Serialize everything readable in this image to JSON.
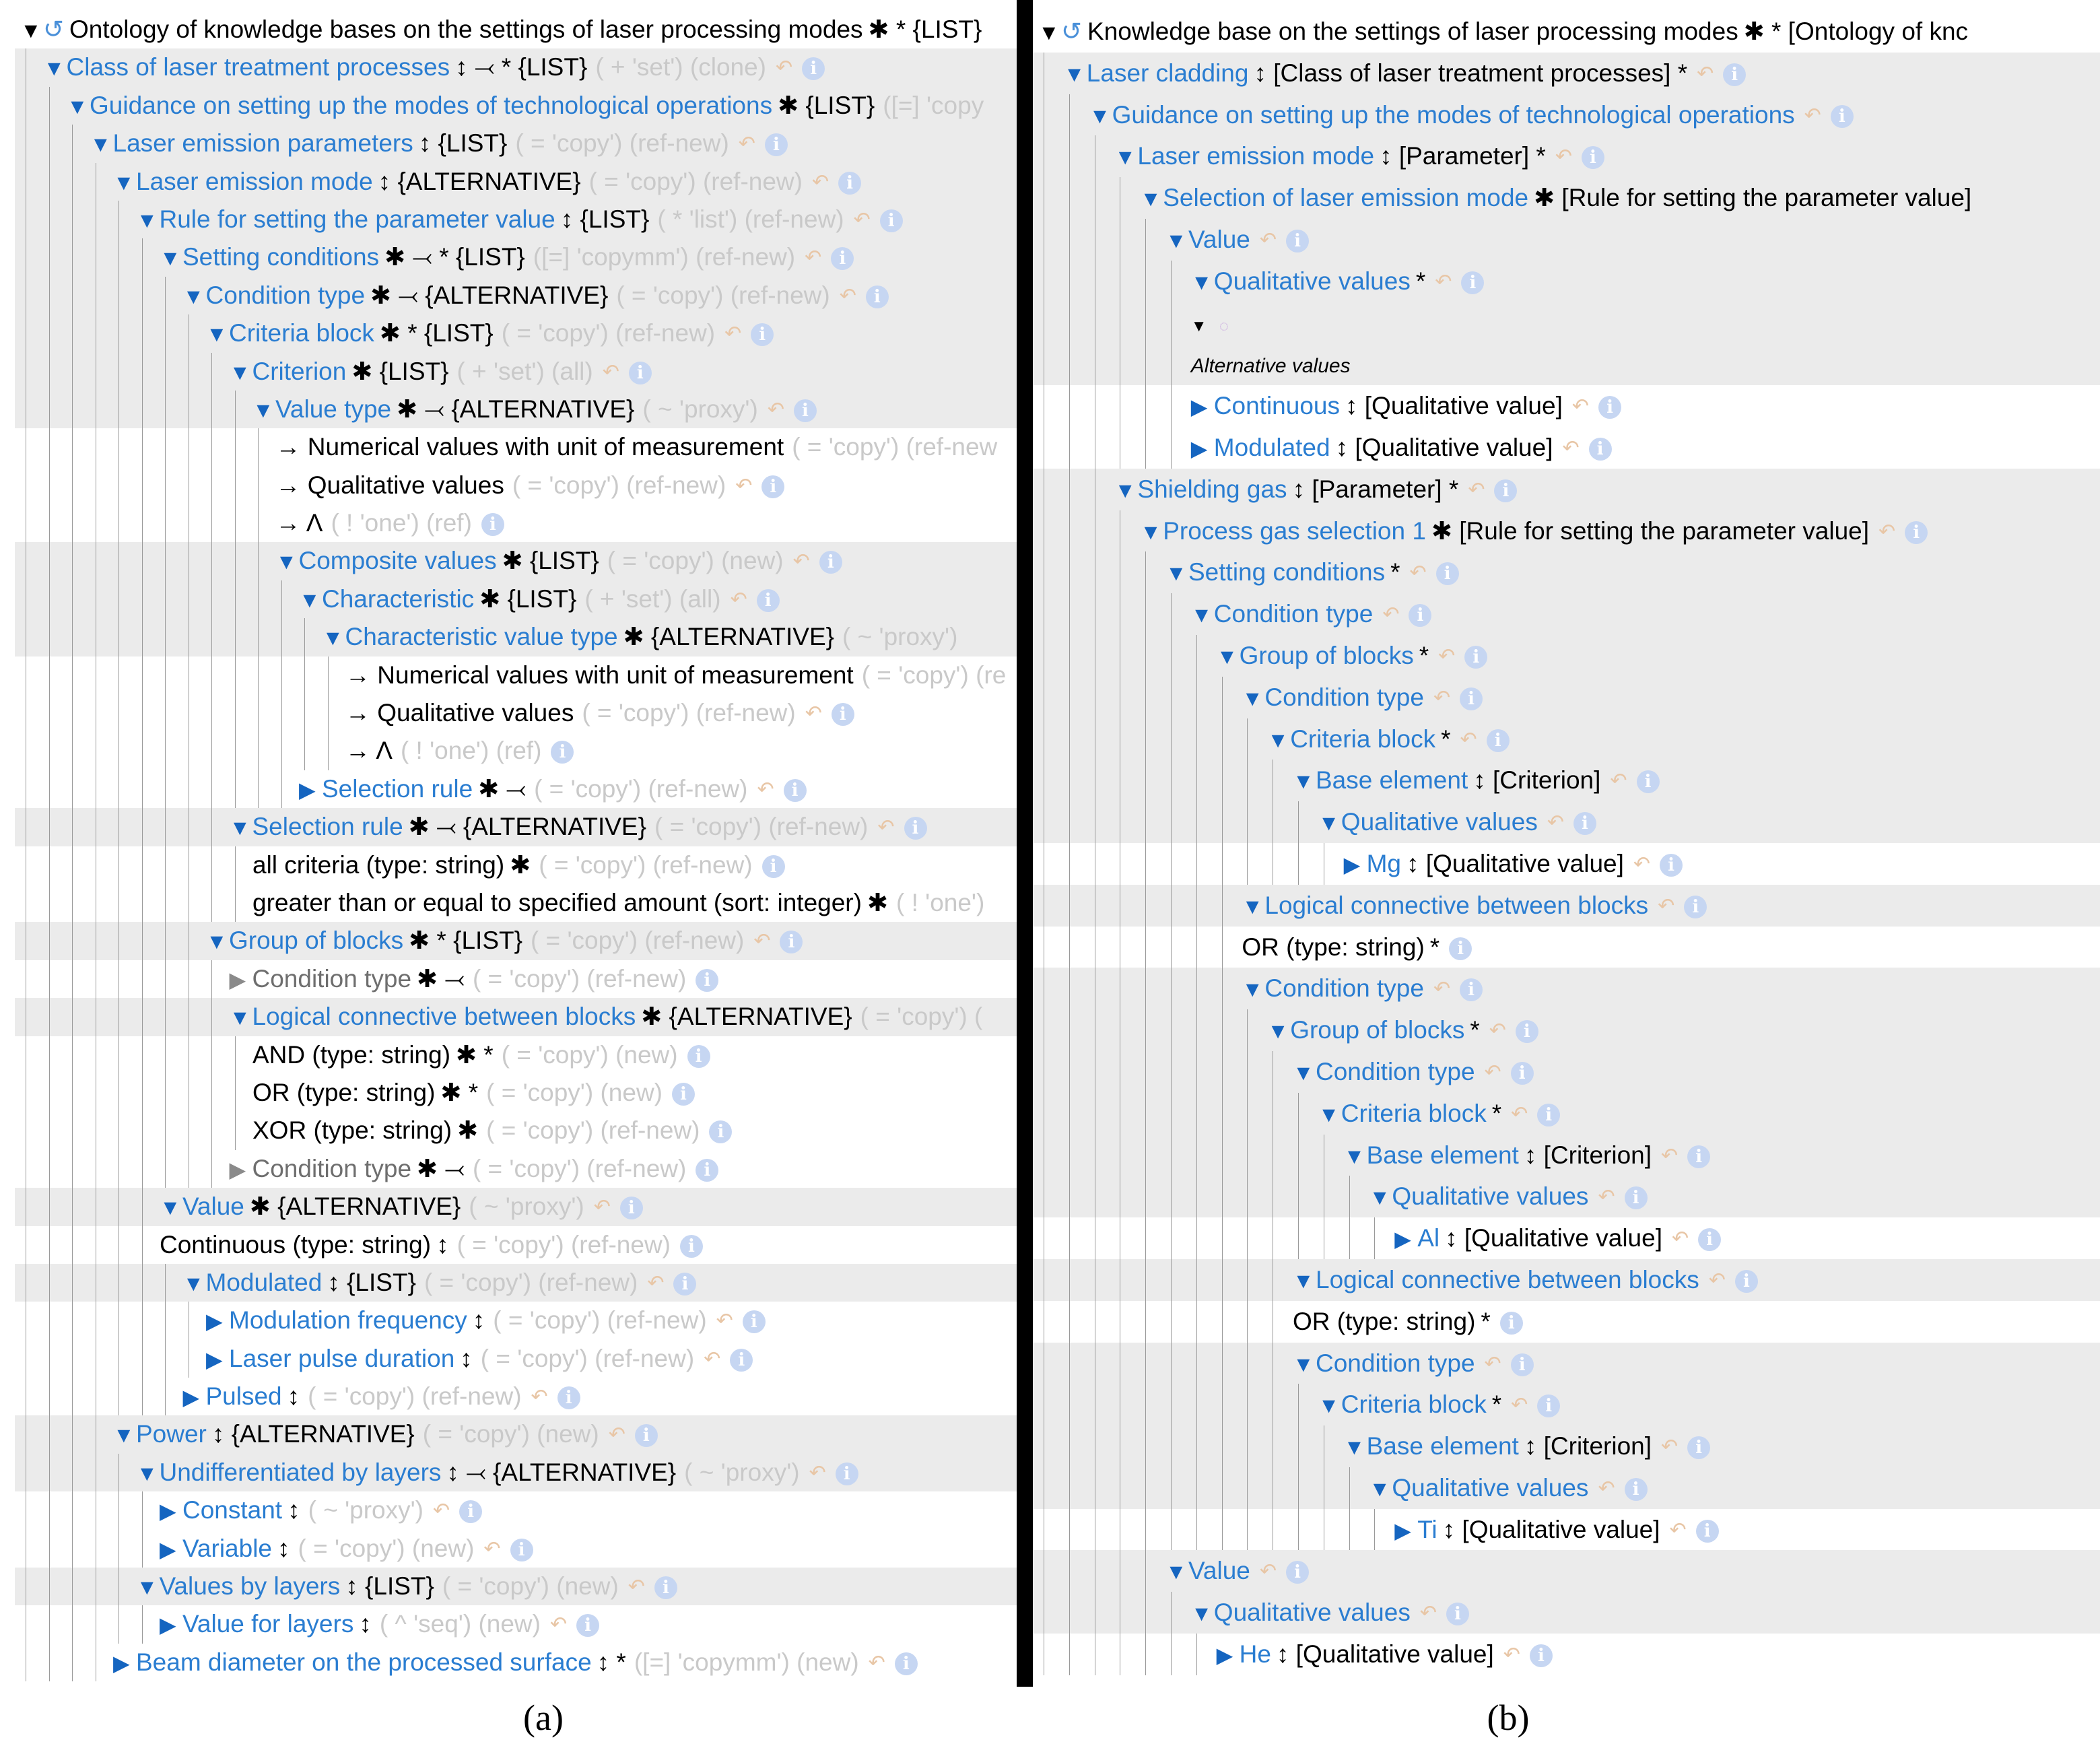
{
  "pane_a": {
    "rows": [
      {
        "d": 0,
        "open": true,
        "root": true,
        "label": "Ontology of knowledge bases on the settings of laser processing modes",
        "dark": true,
        "sfx": "✱ * {LIST}",
        "meta": "",
        "shade": false,
        "icons": false
      },
      {
        "d": 1,
        "open": true,
        "label": "Class of laser treatment processes",
        "sfx": "↕ ⤙ * {LIST}",
        "meta": "( + 'set') (clone)",
        "shade": true
      },
      {
        "d": 2,
        "open": true,
        "label": "Guidance on setting up the modes of technological operations",
        "sfx": "✱ {LIST}",
        "meta": "([=] 'copy",
        "shade": true,
        "icons": false
      },
      {
        "d": 3,
        "open": true,
        "label": "Laser emission parameters",
        "sfx": "↕ {LIST}",
        "meta": "( = 'copy') (ref-new)",
        "shade": true
      },
      {
        "d": 4,
        "open": true,
        "label": "Laser emission mode",
        "sfx": "↕ {ALTERNATIVE}",
        "meta": "( = 'copy') (ref-new)",
        "shade": true
      },
      {
        "d": 5,
        "open": true,
        "label": "Rule for setting the parameter value",
        "sfx": "↕ {LIST}",
        "meta": "( * 'list') (ref-new)",
        "shade": true
      },
      {
        "d": 6,
        "open": true,
        "label": "Setting conditions",
        "sfx": "✱ ⤙ * {LIST}",
        "meta": "([=] 'copymm') (ref-new)",
        "shade": true
      },
      {
        "d": 7,
        "open": true,
        "label": "Condition type",
        "sfx": "✱ ⤙ {ALTERNATIVE}",
        "meta": "( = 'copy') (ref-new)",
        "shade": true
      },
      {
        "d": 8,
        "open": true,
        "label": "Criteria block",
        "sfx": "✱ * {LIST}",
        "meta": "( = 'copy') (ref-new)",
        "shade": true
      },
      {
        "d": 9,
        "open": true,
        "label": "Criterion",
        "sfx": "✱ {LIST}",
        "meta": "( + 'set') (all)",
        "shade": true
      },
      {
        "d": 10,
        "open": true,
        "label": "Value type",
        "sfx": "✱ ⤙ {ALTERNATIVE}",
        "meta": "( ~ 'proxy')",
        "shade": true
      },
      {
        "d": 11,
        "leaf": true,
        "label": "→ Numerical values with unit of measurement",
        "dark": true,
        "sfx": "",
        "meta": "( = 'copy') (ref-new",
        "shade": false,
        "icons": false
      },
      {
        "d": 11,
        "leaf": true,
        "label": "→ Qualitative values",
        "dark": true,
        "sfx": "",
        "meta": "( = 'copy') (ref-new)",
        "shade": false
      },
      {
        "d": 11,
        "leaf": true,
        "label": "→ Λ",
        "dark": true,
        "sfx": "",
        "meta": "( ! 'one') (ref)",
        "shade": false,
        "infoonly": true
      },
      {
        "d": 11,
        "open": true,
        "label": "Composite values",
        "sfx": "✱ {LIST}",
        "meta": "( = 'copy') (new)",
        "shade": true
      },
      {
        "d": 12,
        "open": true,
        "label": "Characteristic",
        "sfx": "✱ {LIST}",
        "meta": "( + 'set') (all)",
        "shade": true
      },
      {
        "d": 13,
        "open": true,
        "label": "Characteristic value type",
        "sfx": "✱ {ALTERNATIVE}",
        "meta": "( ~ 'proxy')",
        "shade": true,
        "icons": false
      },
      {
        "d": 14,
        "leaf": true,
        "label": "→ Numerical values with unit of measurement",
        "dark": true,
        "sfx": "",
        "meta": "( = 'copy') (re",
        "shade": false,
        "icons": false
      },
      {
        "d": 14,
        "leaf": true,
        "label": "→ Qualitative values",
        "dark": true,
        "sfx": "",
        "meta": "( = 'copy') (ref-new)",
        "shade": false
      },
      {
        "d": 14,
        "leaf": true,
        "label": "→ Λ",
        "dark": true,
        "sfx": "",
        "meta": "( ! 'one') (ref)",
        "shade": false,
        "infoonly": true
      },
      {
        "d": 12,
        "open": false,
        "label": "Selection rule",
        "sfx": "✱ ⤙",
        "meta": "( = 'copy') (ref-new)",
        "shade": false
      },
      {
        "d": 9,
        "open": true,
        "label": "Selection rule",
        "sfx": "✱ ⤙ {ALTERNATIVE}",
        "meta": "( = 'copy') (ref-new)",
        "shade": true
      },
      {
        "d": 10,
        "leaf": true,
        "label": "all criteria (type: string)",
        "dark": true,
        "sfx": "✱",
        "meta": "( = 'copy') (ref-new)",
        "shade": false,
        "infoonly": true
      },
      {
        "d": 10,
        "leaf": true,
        "label": "greater than or equal to specified amount (sort: integer)",
        "dark": true,
        "sfx": "✱",
        "meta": "( ! 'one')",
        "shade": false,
        "icons": false
      },
      {
        "d": 8,
        "open": true,
        "label": "Group of blocks",
        "sfx": "✱ * {LIST}",
        "meta": "( = 'copy') (ref-new)",
        "shade": true
      },
      {
        "d": 9,
        "open": false,
        "gray": true,
        "label": "Condition type",
        "sfx": "✱ ⤙",
        "meta": "( = 'copy') (ref-new)",
        "shade": false,
        "infoonly": true
      },
      {
        "d": 9,
        "open": true,
        "label": "Logical connective between blocks",
        "sfx": "✱ {ALTERNATIVE}",
        "meta": "( = 'copy') (",
        "shade": true,
        "icons": false
      },
      {
        "d": 10,
        "leaf": true,
        "label": "AND (type: string)",
        "dark": true,
        "sfx": "✱ *",
        "meta": "( = 'copy') (new)",
        "shade": false,
        "infoonly": true
      },
      {
        "d": 10,
        "leaf": true,
        "label": "OR (type: string)",
        "dark": true,
        "sfx": "✱ *",
        "meta": "( = 'copy') (new)",
        "shade": false,
        "infoonly": true
      },
      {
        "d": 10,
        "leaf": true,
        "label": "XOR (type: string)",
        "dark": true,
        "sfx": "✱",
        "meta": "( = 'copy') (ref-new)",
        "shade": false,
        "infoonly": true
      },
      {
        "d": 9,
        "open": false,
        "gray": true,
        "label": "Condition type",
        "sfx": "✱ ⤙",
        "meta": "( = 'copy') (ref-new)",
        "shade": false,
        "infoonly": true
      },
      {
        "d": 6,
        "open": true,
        "label": "Value",
        "sfx": "✱ {ALTERNATIVE}",
        "meta": "( ~ 'proxy')",
        "shade": true
      },
      {
        "d": 6,
        "leaf": true,
        "label": "Continuous (type: string)",
        "dark": true,
        "sfx": "↕",
        "meta": "( = 'copy') (ref-new)",
        "shade": false,
        "infoonly": true
      },
      {
        "d": 7,
        "open": true,
        "label": "Modulated",
        "sfx": "↕ {LIST}",
        "meta": "( = 'copy') (ref-new)",
        "shade": true
      },
      {
        "d": 8,
        "open": false,
        "label": "Modulation frequency",
        "sfx": "↕",
        "meta": "( = 'copy') (ref-new)",
        "shade": false
      },
      {
        "d": 8,
        "open": false,
        "label": "Laser pulse duration",
        "sfx": "↕",
        "meta": "( = 'copy') (ref-new)",
        "shade": false
      },
      {
        "d": 7,
        "open": false,
        "label": "Pulsed",
        "sfx": "↕",
        "meta": "( = 'copy') (ref-new)",
        "shade": false
      },
      {
        "d": 4,
        "open": true,
        "label": "Power",
        "sfx": "↕ {ALTERNATIVE}",
        "meta": "( = 'copy') (new)",
        "shade": true
      },
      {
        "d": 5,
        "open": true,
        "label": "Undifferentiated by layers",
        "sfx": "↕ ⤙ {ALTERNATIVE}",
        "meta": "( ~ 'proxy')",
        "shade": true
      },
      {
        "d": 6,
        "open": false,
        "label": "Constant",
        "sfx": "↕",
        "meta": "( ~ 'proxy')",
        "shade": false
      },
      {
        "d": 6,
        "open": false,
        "label": "Variable",
        "sfx": "↕",
        "meta": "( = 'copy') (new)",
        "shade": false
      },
      {
        "d": 5,
        "open": true,
        "label": "Values by layers",
        "sfx": "↕ {LIST}",
        "meta": "( = 'copy') (new)",
        "shade": true
      },
      {
        "d": 6,
        "open": false,
        "label": "Value for layers",
        "sfx": "↕",
        "meta": "( ^ 'seq') (new)",
        "shade": false
      },
      {
        "d": 4,
        "open": false,
        "label": "Beam diameter on the processed surface",
        "sfx": "↕ *",
        "meta": "([=] 'copymm') (new)",
        "shade": false
      }
    ]
  },
  "pane_b": {
    "rows": [
      {
        "d": 0,
        "open": true,
        "root": true,
        "label": "Knowledge base on the settings of laser processing modes",
        "dark": true,
        "sfx": "✱ * [Ontology of knc",
        "meta": "",
        "shade": false,
        "icons": false
      },
      {
        "d": 1,
        "open": true,
        "label": "Laser cladding",
        "sfx": "↕ [Class of laser treatment processes] *",
        "meta": "",
        "shade": true
      },
      {
        "d": 2,
        "open": true,
        "label": "Guidance on setting up the modes of technological operations",
        "sfx": "",
        "meta": "",
        "shade": true
      },
      {
        "d": 3,
        "open": true,
        "label": "Laser emission mode",
        "sfx": "↕ [Parameter] *",
        "meta": "",
        "shade": true
      },
      {
        "d": 4,
        "open": true,
        "label": "Selection of laser emission mode",
        "sfx": "✱ [Rule for setting the parameter value]",
        "meta": "",
        "shade": true,
        "icons": false
      },
      {
        "d": 5,
        "open": true,
        "label": "Value",
        "sfx": "",
        "meta": "",
        "shade": true
      },
      {
        "d": 6,
        "open": true,
        "label": "Qualitative values",
        "sfx": "*",
        "meta": "",
        "shade": true
      },
      {
        "d": 6,
        "note_toggle": true,
        "shade": true
      },
      {
        "d": 6,
        "note": true,
        "label": "Alternative values",
        "shade": true
      },
      {
        "d": 6,
        "open": false,
        "label": "Continuous",
        "sfx": "↕ [Qualitative value]",
        "meta": "",
        "shade": false
      },
      {
        "d": 6,
        "open": false,
        "label": "Modulated",
        "sfx": "↕ [Qualitative value]",
        "meta": "",
        "shade": false
      },
      {
        "d": 3,
        "open": true,
        "label": "Shielding gas",
        "sfx": "↕ [Parameter] *",
        "meta": "",
        "shade": true
      },
      {
        "d": 4,
        "open": true,
        "label": "Process gas selection 1",
        "sfx": "✱ [Rule for setting the parameter value]",
        "meta": "",
        "shade": true
      },
      {
        "d": 5,
        "open": true,
        "label": "Setting conditions",
        "sfx": "*",
        "meta": "",
        "shade": true
      },
      {
        "d": 6,
        "open": true,
        "label": "Condition type",
        "sfx": "",
        "meta": "",
        "shade": true
      },
      {
        "d": 7,
        "open": true,
        "label": "Group of blocks",
        "sfx": "*",
        "meta": "",
        "shade": true
      },
      {
        "d": 8,
        "open": true,
        "label": "Condition type",
        "sfx": "",
        "meta": "",
        "shade": true
      },
      {
        "d": 9,
        "open": true,
        "label": "Criteria block",
        "sfx": "*",
        "meta": "",
        "shade": true
      },
      {
        "d": 10,
        "open": true,
        "label": "Base element",
        "sfx": "↕ [Criterion]",
        "meta": "",
        "shade": true
      },
      {
        "d": 11,
        "open": true,
        "label": "Qualitative values",
        "sfx": "",
        "meta": "",
        "shade": true
      },
      {
        "d": 12,
        "open": false,
        "label": "Mg",
        "sfx": "↕ [Qualitative value]",
        "meta": "",
        "shade": false
      },
      {
        "d": 8,
        "open": true,
        "label": "Logical connective between blocks",
        "sfx": "",
        "meta": "",
        "shade": true
      },
      {
        "d": 8,
        "leaf": true,
        "label": "OR (type: string)",
        "dark": true,
        "sfx": "*",
        "meta": "",
        "shade": false,
        "infoonly": true
      },
      {
        "d": 8,
        "open": true,
        "label": "Condition type",
        "sfx": "",
        "meta": "",
        "shade": true
      },
      {
        "d": 9,
        "open": true,
        "label": "Group of blocks",
        "sfx": "*",
        "meta": "",
        "shade": true
      },
      {
        "d": 10,
        "open": true,
        "label": "Condition type",
        "sfx": "",
        "meta": "",
        "shade": true
      },
      {
        "d": 11,
        "open": true,
        "label": "Criteria block",
        "sfx": "*",
        "meta": "",
        "shade": true
      },
      {
        "d": 12,
        "open": true,
        "label": "Base element",
        "sfx": "↕ [Criterion]",
        "meta": "",
        "shade": true
      },
      {
        "d": 13,
        "open": true,
        "label": "Qualitative values",
        "sfx": "",
        "meta": "",
        "shade": true
      },
      {
        "d": 14,
        "open": false,
        "label": "Al",
        "sfx": "↕ [Qualitative value]",
        "meta": "",
        "shade": false
      },
      {
        "d": 10,
        "open": true,
        "label": "Logical connective between blocks",
        "sfx": "",
        "meta": "",
        "shade": true
      },
      {
        "d": 10,
        "leaf": true,
        "label": "OR (type: string)",
        "dark": true,
        "sfx": "*",
        "meta": "",
        "shade": false,
        "infoonly": true
      },
      {
        "d": 10,
        "open": true,
        "label": "Condition type",
        "sfx": "",
        "meta": "",
        "shade": true
      },
      {
        "d": 11,
        "open": true,
        "label": "Criteria block",
        "sfx": "*",
        "meta": "",
        "shade": true
      },
      {
        "d": 12,
        "open": true,
        "label": "Base element",
        "sfx": "↕ [Criterion]",
        "meta": "",
        "shade": true
      },
      {
        "d": 13,
        "open": true,
        "label": "Qualitative values",
        "sfx": "",
        "meta": "",
        "shade": true
      },
      {
        "d": 14,
        "open": false,
        "label": "Ti",
        "sfx": "↕ [Qualitative value]",
        "meta": "",
        "shade": false
      },
      {
        "d": 5,
        "open": true,
        "label": "Value",
        "sfx": "",
        "meta": "",
        "shade": true
      },
      {
        "d": 6,
        "open": true,
        "label": "Qualitative values",
        "sfx": "",
        "meta": "",
        "shade": true
      },
      {
        "d": 7,
        "open": false,
        "label": "He",
        "sfx": "↕ [Qualitative value]",
        "meta": "",
        "shade": false
      }
    ]
  },
  "captions": {
    "a": "(a)",
    "b": "(b)"
  },
  "colors": {
    "link": "#2a7dd1",
    "meta": "#c9c9c9",
    "shade": "#ebebeb",
    "toggle": "#1565c0"
  },
  "icons": {
    "expanded": "triangle-down-icon",
    "collapsed": "triangle-right-icon",
    "edit": "edit-arrow-icon",
    "info": "info-icon"
  }
}
